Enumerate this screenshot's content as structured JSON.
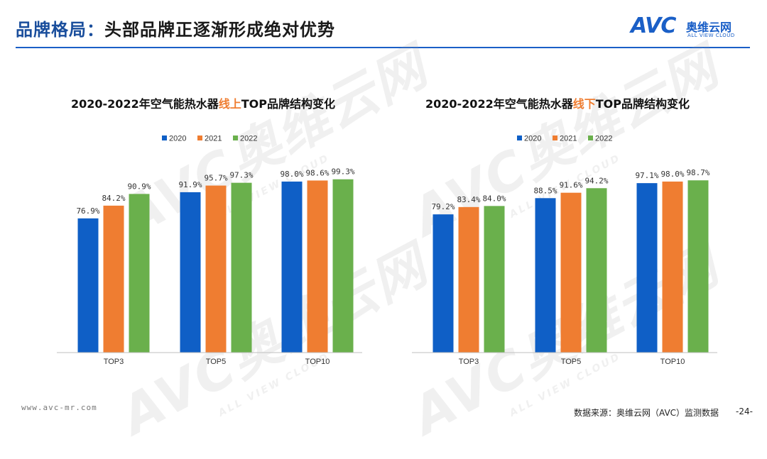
{
  "header": {
    "title_prefix": "品牌格局：",
    "title_rest": "头部品牌正逐渐形成绝对优势",
    "logo_mark": "AVC",
    "logo_cn": "奥维云网",
    "logo_en": "ALL VIEW CLOUD"
  },
  "watermark": {
    "big": "AVC奥维云网",
    "small": "ALL VIEW CLOUD"
  },
  "colors": {
    "s2020": "#0f5fc6",
    "s2021": "#ef7d31",
    "s2022": "#6ab04c",
    "rule": "#1a5fc7"
  },
  "chart_data": [
    {
      "type": "bar",
      "title_a": "2020-2022年空气能热水器",
      "title_em": "线上",
      "title_b": "TOP品牌结构变化",
      "categories": [
        "TOP3",
        "TOP5",
        "TOP10"
      ],
      "series": [
        {
          "name": "2020",
          "values": [
            76.9,
            91.9,
            98.0
          ],
          "labels": [
            "76.9%",
            "91.9%",
            "98.0%"
          ]
        },
        {
          "name": "2021",
          "values": [
            84.2,
            95.7,
            98.6
          ],
          "labels": [
            "84.2%",
            "95.7%",
            "98.6%"
          ]
        },
        {
          "name": "2022",
          "values": [
            90.9,
            97.3,
            99.3
          ],
          "labels": [
            "90.9%",
            "97.3%",
            "99.3%"
          ]
        }
      ],
      "ylim": [
        0,
        100
      ],
      "legend": "top-center"
    },
    {
      "type": "bar",
      "title_a": "2020-2022年空气能热水器",
      "title_em": "线下",
      "title_b": "TOP品牌结构变化",
      "categories": [
        "TOP3",
        "TOP5",
        "TOP10"
      ],
      "series": [
        {
          "name": "2020",
          "values": [
            79.2,
            88.5,
            97.1
          ],
          "labels": [
            "79.2%",
            "88.5%",
            "97.1%"
          ]
        },
        {
          "name": "2021",
          "values": [
            83.4,
            91.6,
            98.0
          ],
          "labels": [
            "83.4%",
            "91.6%",
            "98.0%"
          ]
        },
        {
          "name": "2022",
          "values": [
            84.0,
            94.2,
            98.7
          ],
          "labels": [
            "84.0%",
            "94.2%",
            "98.7%"
          ]
        }
      ],
      "ylim": [
        0,
        100
      ],
      "legend": "top-center"
    }
  ],
  "footer": {
    "website": "www.avc-mr.com",
    "source": "数据来源：奥维云网（AVC）监测数据",
    "page": "-24-"
  }
}
